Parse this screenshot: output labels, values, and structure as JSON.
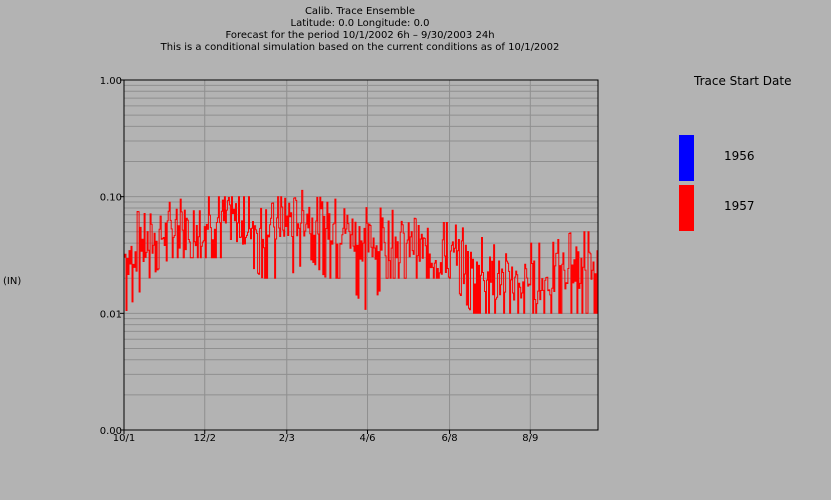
{
  "chart_data": {
    "type": "line",
    "title_lines": [
      "Calib. Trace Ensemble",
      "Latitude: 0.0    Longitude:  0.0",
      "Forecast for the period 10/1/2002 6h  –  9/30/2003 24h",
      "This is a conditional simulation based on the current conditions as of 10/1/2002"
    ],
    "ylabel": "(IN)",
    "y_scale": "log",
    "ylim": [
      0.001,
      1.0
    ],
    "y_ticks": [
      {
        "value": 1.0,
        "label": "1.00"
      },
      {
        "value": 0.1,
        "label": "0.10"
      },
      {
        "value": 0.01,
        "label": "0.01"
      },
      {
        "value": 0.001,
        "label": "0.00"
      }
    ],
    "x_ticks": [
      "10/1",
      "12/2",
      "2/3",
      "4/6",
      "6/8",
      "8/9"
    ],
    "x_tick_dates": [
      "2002-10-01",
      "2002-12-02",
      "2003-02-03",
      "2003-04-06",
      "2003-06-08",
      "2003-08-09"
    ],
    "xlim": [
      "2002-10-01",
      "2003-09-30"
    ],
    "grid": true,
    "legend_title": "Trace Start Date",
    "legend_position": "right",
    "series": [
      {
        "name": "1956",
        "color": "#0000ff",
        "values": []
      },
      {
        "name": "1957",
        "color": "#ff0000",
        "x": [
          "2002-10-01",
          "2002-10-20",
          "2002-11-05",
          "2002-11-20",
          "2002-12-02",
          "2002-12-15",
          "2003-01-01",
          "2003-01-15",
          "2003-02-03",
          "2003-02-20",
          "2003-03-05",
          "2003-03-20",
          "2003-04-06",
          "2003-04-20",
          "2003-05-05",
          "2003-05-20",
          "2003-06-08",
          "2003-06-25",
          "2003-07-10",
          "2003-07-25",
          "2003-08-09",
          "2003-08-25",
          "2003-09-10",
          "2003-09-30"
        ],
        "values": [
          0.03,
          0.04,
          0.05,
          0.055,
          0.06,
          0.065,
          0.06,
          0.055,
          0.065,
          0.07,
          0.06,
          0.055,
          0.04,
          0.045,
          0.04,
          0.035,
          0.03,
          0.025,
          0.02,
          0.018,
          0.018,
          0.02,
          0.025,
          0.025
        ],
        "max": [
          0.08,
          0.07,
          0.09,
          0.1,
          0.1,
          0.1,
          0.1,
          0.1,
          0.1,
          0.12,
          0.1,
          0.09,
          0.08,
          0.08,
          0.07,
          0.06,
          0.06,
          0.05,
          0.04,
          0.03,
          0.04,
          0.04,
          0.05,
          0.05
        ],
        "min": [
          0.01,
          0.02,
          0.03,
          0.03,
          0.03,
          0.03,
          0.03,
          0.02,
          0.02,
          0.03,
          0.02,
          0.02,
          0.01,
          0.02,
          0.02,
          0.02,
          0.02,
          0.01,
          0.01,
          0.01,
          0.01,
          0.01,
          0.01,
          0.01
        ]
      }
    ]
  }
}
